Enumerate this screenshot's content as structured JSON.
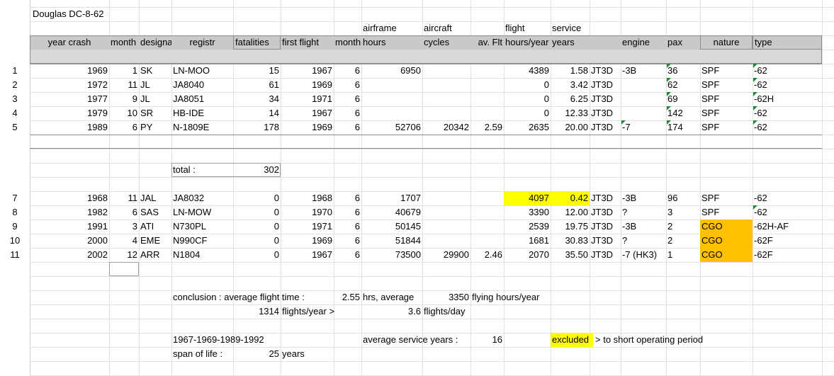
{
  "sheet_title": "Douglas DC-8-62",
  "header_top": {
    "airframe": "airframe",
    "aircraft": "aircraft",
    "flight": "flight",
    "service": "service"
  },
  "headers": {
    "year_crash": "year crash",
    "month": "month",
    "designat": "designat",
    "registr": "registr",
    "fatalities": "fatalities",
    "first_flight": "first flight",
    "month2": "month",
    "hours": "hours",
    "cycles": "cycles",
    "av_flt": "av. Flt",
    "hours_year": "hours/year",
    "years": "years",
    "engine": "engine",
    "pax": "pax",
    "nature": "nature",
    "type": "type"
  },
  "rows_a": [
    {
      "num": "1",
      "year": "1969",
      "month": "1",
      "des": "SK",
      "reg": "LN-MOO",
      "fat": "15",
      "ff": "1967",
      "m2": "6",
      "af": "6950",
      "cyc": "",
      "av": "",
      "fh": "4389",
      "sy": "1.58",
      "eng": "JT3D",
      "eng2": "-3B",
      "pax": "36",
      "nat": "SPF",
      "type": "-62"
    },
    {
      "num": "2",
      "year": "1972",
      "month": "11",
      "des": "JL",
      "reg": "JA8040",
      "fat": "61",
      "ff": "1969",
      "m2": "6",
      "af": "",
      "cyc": "",
      "av": "",
      "fh": "0",
      "sy": "3.42",
      "eng": "JT3D",
      "eng2": "",
      "pax": "62",
      "nat": "SPF",
      "type": "-62"
    },
    {
      "num": "3",
      "year": "1977",
      "month": "9",
      "des": "JL",
      "reg": "JA8051",
      "fat": "34",
      "ff": "1971",
      "m2": "6",
      "af": "",
      "cyc": "",
      "av": "",
      "fh": "0",
      "sy": "6.25",
      "eng": "JT3D",
      "eng2": "",
      "pax": "69",
      "nat": "SPF",
      "type": "-62H"
    },
    {
      "num": "4",
      "year": "1979",
      "month": "10",
      "des": "SR",
      "reg": "HB-IDE",
      "fat": "14",
      "ff": "1967",
      "m2": "6",
      "af": "",
      "cyc": "",
      "av": "",
      "fh": "0",
      "sy": "12.33",
      "eng": "JT3D",
      "eng2": "",
      "pax": "142",
      "nat": "SPF",
      "type": "-62"
    },
    {
      "num": "5",
      "year": "1989",
      "month": "6",
      "des": "PY",
      "reg": "N-1809E",
      "fat": "178",
      "ff": "1969",
      "m2": "6",
      "af": "52706",
      "cyc": "20342",
      "av": "2.59",
      "fh": "2635",
      "sy": "20.00",
      "eng": "JT3D",
      "eng2": "-7",
      "pax": "174",
      "nat": "SPF",
      "type": "-62"
    }
  ],
  "total_label": "total :",
  "total_value": "302",
  "rows_b": [
    {
      "num": "7",
      "year": "1968",
      "month": "11",
      "des": "JAL",
      "reg": "JA8032",
      "fat": "0",
      "ff": "1968",
      "m2": "6",
      "af": "1707",
      "cyc": "",
      "av": "",
      "fh": "4097",
      "sy": "0.42",
      "eng": "JT3D",
      "eng2": "-3B",
      "pax": "96",
      "nat": "SPF",
      "type": "-62"
    },
    {
      "num": "8",
      "year": "1982",
      "month": "6",
      "des": "SAS",
      "reg": "LN-MOW",
      "fat": "0",
      "ff": "1970",
      "m2": "6",
      "af": "40679",
      "cyc": "",
      "av": "",
      "fh": "3390",
      "sy": "12.00",
      "eng": "JT3D",
      "eng2": "?",
      "pax": "3",
      "nat": "SPF",
      "type": "-62"
    },
    {
      "num": "9",
      "year": "1991",
      "month": "3",
      "des": "ATI",
      "reg": "N730PL",
      "fat": "0",
      "ff": "1971",
      "m2": "6",
      "af": "50145",
      "cyc": "",
      "av": "",
      "fh": "2539",
      "sy": "19.75",
      "eng": "JT3D",
      "eng2": "-3B",
      "pax": "2",
      "nat": "CGO",
      "type": "-62H-AF"
    },
    {
      "num": "10",
      "year": "2000",
      "month": "4",
      "des": "EME",
      "reg": "N990CF",
      "fat": "0",
      "ff": "1969",
      "m2": "6",
      "af": "51844",
      "cyc": "",
      "av": "",
      "fh": "1681",
      "sy": "30.83",
      "eng": "JT3D",
      "eng2": "?",
      "pax": "2",
      "nat": "CGO",
      "type": "-62F"
    },
    {
      "num": "11",
      "year": "2002",
      "month": "12",
      "des": "ARR",
      "reg": "N1804",
      "fat": "0",
      "ff": "1967",
      "m2": "6",
      "af": "73500",
      "cyc": "29900",
      "av": "2.46",
      "fh": "2070",
      "sy": "35.50",
      "eng": "JT3D",
      "eng2": "-7 (HK3)",
      "pax": "1",
      "nat": "CGO",
      "type": "-62F"
    }
  ],
  "conclusion": {
    "label": "conclusion : average flight time :",
    "aft_value": "2.55",
    "aft_unit": "hrs, average",
    "fhy_value": "3350",
    "fhy_unit": "flying hours/year",
    "fpy_value": "1314",
    "fpy_unit": "flights/year >",
    "fpd_value": "3.6",
    "fpd_unit": "flights/day"
  },
  "bottom": {
    "range": "1967-1969-1989-1992",
    "span_label": "span of life :",
    "span_value": "25",
    "span_unit": "years",
    "asy_label": "average service years :",
    "asy_value": "16",
    "excluded": "excluded",
    "excluded_note": "> to short operating period"
  },
  "colors": {
    "highlight_yellow": "#ffff00",
    "highlight_orange": "#ffc000",
    "header_gray": "#c9c9c9",
    "comment_green": "#1f8a3b"
  }
}
